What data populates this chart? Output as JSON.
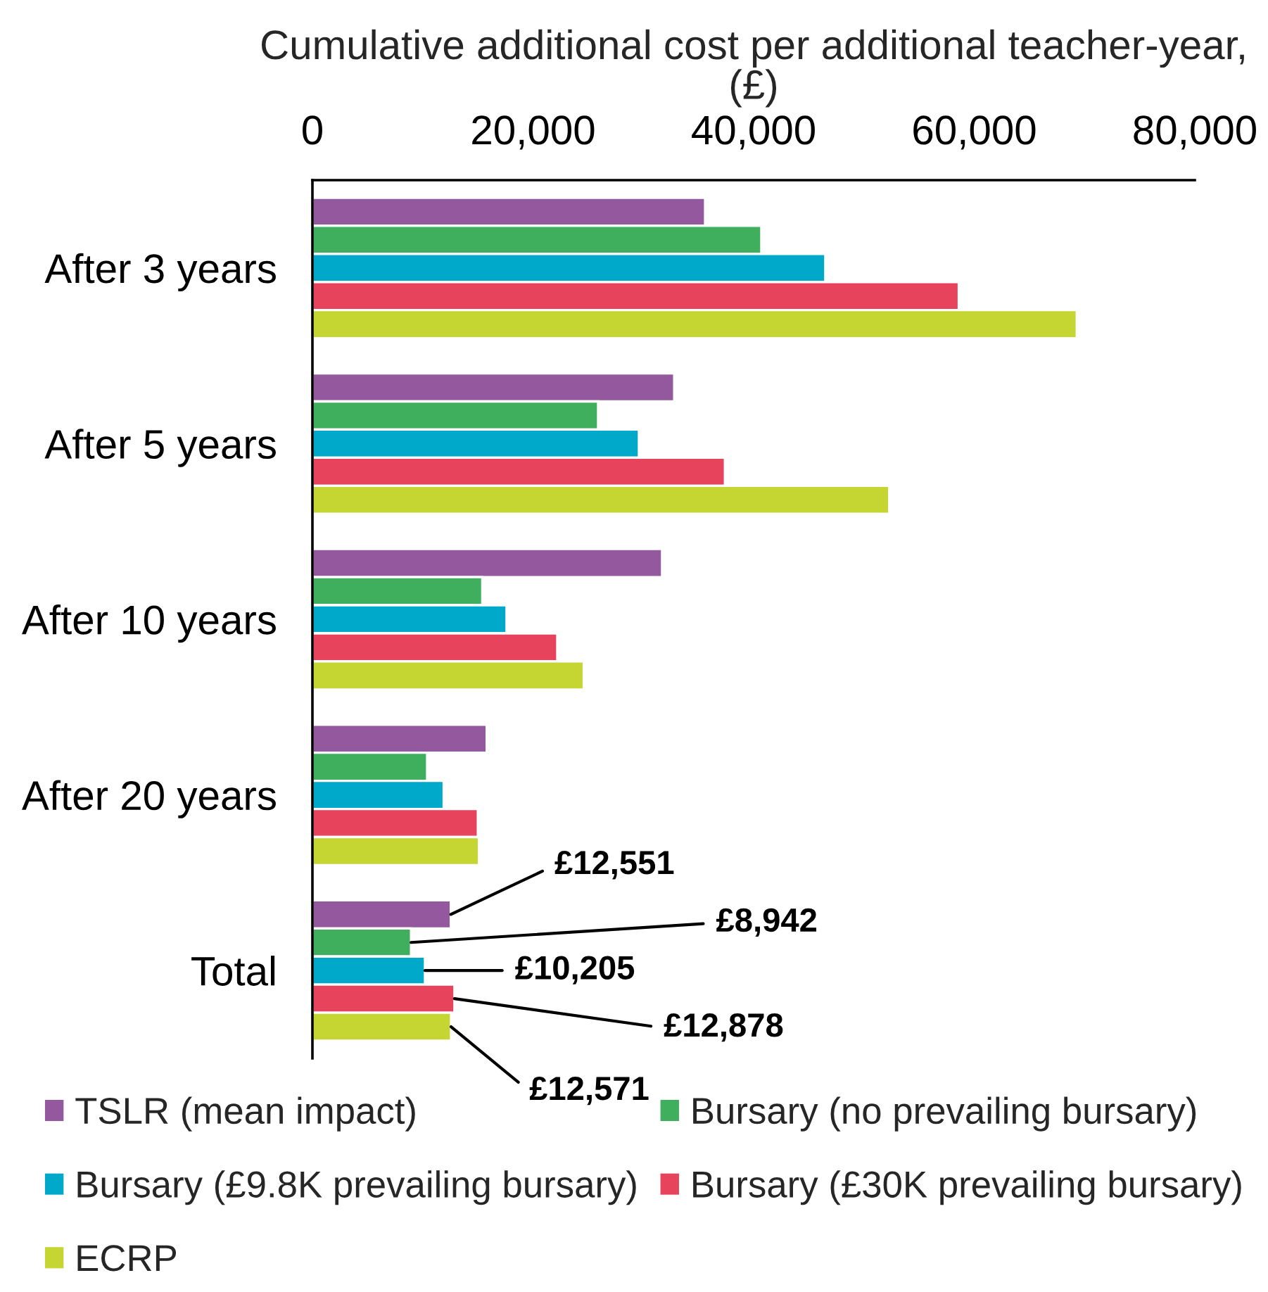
{
  "chart_data": {
    "type": "bar",
    "orientation": "horizontal",
    "xlabel": "Cumulative additional cost per additional teacher-year,\n(£)",
    "categories": [
      "After 3 years",
      "After 5 years",
      "After 10 years",
      "After 20 years",
      "Total"
    ],
    "xlim": [
      0,
      80000
    ],
    "xticks": [
      0,
      {
        "value": 20000,
        "label": "20,000"
      },
      {
        "value": 40000,
        "label": "40,000"
      },
      {
        "value": 60000,
        "label": "60,000"
      },
      {
        "value": 80000,
        "label": "80,000"
      }
    ],
    "legend": "bottom",
    "series": [
      {
        "name": "TSLR (mean impact)",
        "color": "#93589e",
        "values": [
          35600,
          32800,
          31700,
          15800,
          12551
        ],
        "value_labels": [
          null,
          null,
          null,
          null,
          "£12,551"
        ]
      },
      {
        "name": "Bursary (no prevailing bursary)",
        "color": "#3fae5d",
        "values": [
          40700,
          25900,
          15400,
          10400,
          8942
        ],
        "value_labels": [
          null,
          null,
          null,
          null,
          "£8,942"
        ]
      },
      {
        "name": "Bursary (£9.8K prevailing bursary)",
        "color": "#00a9c9",
        "values": [
          46500,
          29600,
          17600,
          11900,
          10205
        ],
        "value_labels": [
          null,
          null,
          null,
          null,
          "£10,205"
        ]
      },
      {
        "name": "Bursary (£30K prevailing bursary)",
        "color": "#e8435d",
        "values": [
          58600,
          37400,
          22200,
          15000,
          12878
        ],
        "value_labels": [
          null,
          null,
          null,
          null,
          "£12,878"
        ]
      },
      {
        "name": "ECRP",
        "color": "#c5d531",
        "values": [
          69300,
          52300,
          24600,
          15100,
          12571
        ],
        "value_labels": [
          null,
          null,
          null,
          null,
          "£12,571"
        ]
      }
    ]
  }
}
